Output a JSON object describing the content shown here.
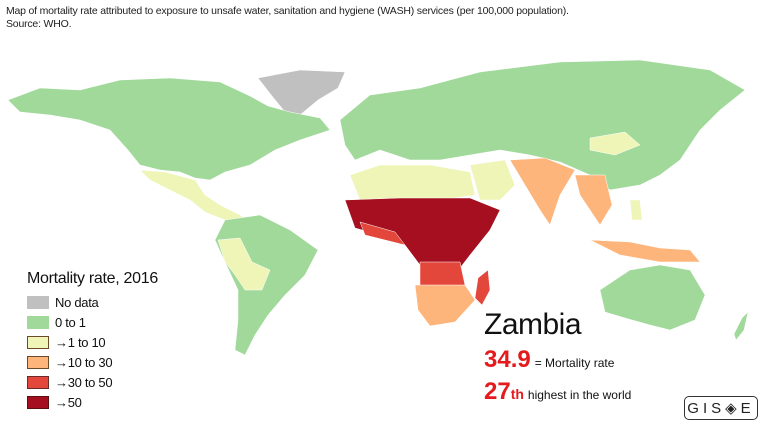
{
  "title": {
    "line1": "Map of mortality rate attributed to exposure to unsafe water, sanitation and hygiene (WASH) services (per 100,000 population).",
    "line2": "Source: WHO."
  },
  "legend": {
    "title": "Mortality rate, 2016",
    "items": [
      {
        "label": "No data",
        "color": "#c0c0c0"
      },
      {
        "label": "0 to 1",
        "color": "#a1d99b"
      },
      {
        "label": "→1 to 10",
        "color": "#eef5b6"
      },
      {
        "label": "→10 to 30",
        "color": "#fdb57b"
      },
      {
        "label": "→30 to 50",
        "color": "#e3463a"
      },
      {
        "label": "→50",
        "color": "#a50f20"
      }
    ]
  },
  "highlight": {
    "country": "Zambia",
    "rate_value": "34.9",
    "rate_label": "= Mortality rate",
    "rank_number": "27",
    "rank_suffix": "th",
    "rank_label": "highest in the world"
  },
  "logo": {
    "text": "GIS◈E"
  }
}
